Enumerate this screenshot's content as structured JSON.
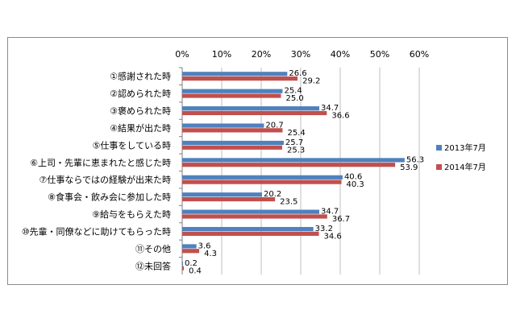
{
  "chart_data": {
    "type": "bar",
    "orientation": "horizontal",
    "categories": [
      "①感謝された時",
      "②認められた時",
      "③褒められた時",
      "④結果が出た時",
      "⑤仕事をしている時",
      "⑥上司・先輩に恵まれたと感じた時",
      "⑦仕事ならではの経験が出来た時",
      "⑧食事会・飲み会に参加した時",
      "⑨給与をもらえた時",
      "⑩先輩・同僚などに助けてもらった時",
      "⑪その他",
      "⑫未回答"
    ],
    "series": [
      {
        "name": "2013年7月",
        "color": "#4f81bd",
        "values": [
          26.6,
          25.4,
          34.7,
          20.7,
          25.7,
          56.3,
          40.6,
          20.2,
          34.7,
          33.2,
          3.6,
          0.2
        ]
      },
      {
        "name": "2014年7月",
        "color": "#c0504d",
        "values": [
          29.2,
          25.0,
          36.6,
          25.4,
          25.3,
          53.9,
          40.3,
          23.5,
          36.7,
          34.6,
          4.3,
          0.4
        ]
      }
    ],
    "data_labels": [
      [
        "26.6",
        "25.4",
        "34.7",
        "20.7",
        "25.7",
        "56.3",
        "40.6",
        "20.2",
        "34.7",
        "33.2",
        "3.6",
        "0.2"
      ],
      [
        "29.2",
        "25.0",
        "36.6",
        "25.4",
        "25.3",
        "53.9",
        "40.3",
        "23.5",
        "36.7",
        "34.6",
        "4.3",
        "0.4"
      ]
    ],
    "xlim": [
      0,
      60
    ],
    "x_ticks": [
      "0%",
      "10%",
      "20%",
      "30%",
      "40%",
      "50%",
      "60%"
    ],
    "grid": true,
    "legend_position": "right",
    "title": "",
    "xlabel": "",
    "ylabel": ""
  }
}
